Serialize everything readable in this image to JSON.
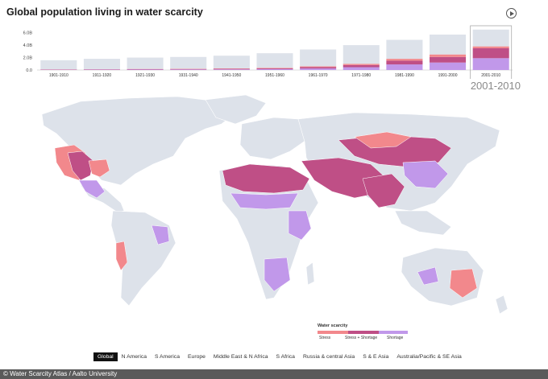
{
  "header": {
    "title": "Global population living in water scarcity",
    "play_icon": "play-icon"
  },
  "selected_decade": "2001-2010",
  "colors": {
    "stress": "#f2888c",
    "stress_shortage": "#bf4f86",
    "shortage": "#c198ea",
    "unaffected": "#dde2ea",
    "land": "#dde2ea"
  },
  "chart_data": {
    "type": "bar",
    "stacked": true,
    "categories": [
      "1901-1910",
      "1911-1920",
      "1921-1930",
      "1931-1940",
      "1941-1950",
      "1951-1960",
      "1961-1970",
      "1971-1980",
      "1981-1990",
      "1991-2000",
      "2001-2010"
    ],
    "ytick_labels": [
      "6.0B",
      "4.0B",
      "2.0B",
      "0.0"
    ],
    "ylim": [
      0,
      6.6
    ],
    "series": [
      {
        "key": "shortage",
        "values": [
          0.05,
          0.06,
          0.07,
          0.08,
          0.1,
          0.14,
          0.25,
          0.45,
          0.9,
          1.2,
          1.9
        ]
      },
      {
        "key": "stress_shortage",
        "values": [
          0.04,
          0.05,
          0.06,
          0.07,
          0.09,
          0.14,
          0.22,
          0.35,
          0.6,
          0.9,
          1.6
        ]
      },
      {
        "key": "stress",
        "values": [
          0.03,
          0.03,
          0.04,
          0.05,
          0.06,
          0.08,
          0.12,
          0.2,
          0.3,
          0.4,
          0.3
        ]
      },
      {
        "key": "unaffected",
        "values": [
          1.45,
          1.66,
          1.83,
          1.9,
          2.05,
          2.34,
          2.71,
          3.0,
          3.05,
          3.2,
          2.7
        ]
      }
    ]
  },
  "legend": {
    "title": "Water scarcity",
    "items": [
      {
        "label": "Stress",
        "color": "#f2888c"
      },
      {
        "label": "Stress + Shortage",
        "color": "#bf4f86"
      },
      {
        "label": "Shortage",
        "color": "#c198ea"
      }
    ]
  },
  "regions": [
    "Global",
    "N America",
    "S America",
    "Europe",
    "Middle East & N Africa",
    "S Africa",
    "Russia & central Asia",
    "S & E Asia",
    "Australia/Pacific & SE Asia"
  ],
  "active_region": "Global",
  "credit": "© Water Scarcity Atlas / Aalto University"
}
